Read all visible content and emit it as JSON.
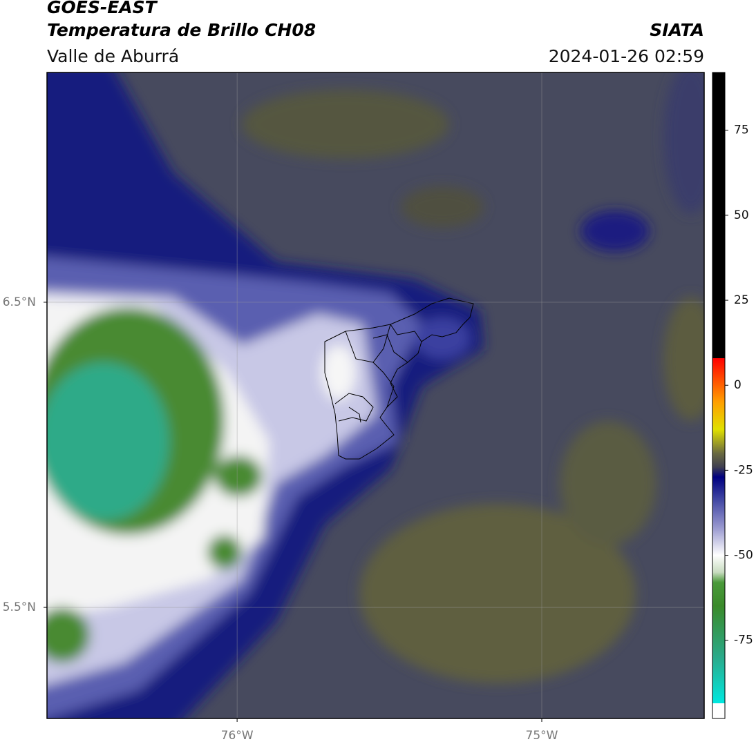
{
  "chart_data": {
    "type": "map",
    "title": "GOES-EAST",
    "subtitle": "Temperatura de Brillo CH08",
    "region": "Valle de Aburrá",
    "source": "SIATA",
    "timestamp": "2024-01-26 02:59",
    "xlim": [
      -76.624,
      -74.467
    ],
    "ylim": [
      5.136,
      7.253
    ],
    "xticks": [
      {
        "value": -76,
        "label": "76°W"
      },
      {
        "value": -75,
        "label": "75°W"
      }
    ],
    "yticks": [
      {
        "value": 6.5,
        "label": "6.5°N"
      },
      {
        "value": 5.5,
        "label": "5.5°N"
      }
    ],
    "grid": true,
    "colorbar": {
      "clim": [
        -98,
        92
      ],
      "ticks": [
        75,
        50,
        25,
        0,
        -25,
        -50,
        -75
      ],
      "stops": [
        {
          "value": -98,
          "color": "#ffffff"
        },
        {
          "value": -93.5,
          "color": "#ffffff"
        },
        {
          "value": -93.5,
          "color": "#00e8e0"
        },
        {
          "value": -80,
          "color": "#2aaa8a"
        },
        {
          "value": -65,
          "color": "#3a8a2a"
        },
        {
          "value": -58,
          "color": "#4a9a3a"
        },
        {
          "value": -55,
          "color": "#c8dcc0"
        },
        {
          "value": -50,
          "color": "#ffffff"
        },
        {
          "value": -42,
          "color": "#9a9ad0"
        },
        {
          "value": -33,
          "color": "#3a40a0"
        },
        {
          "value": -27,
          "color": "#000080"
        },
        {
          "value": -24,
          "color": "#404050"
        },
        {
          "value": -20,
          "color": "#6a6a40"
        },
        {
          "value": -13,
          "color": "#e0e000"
        },
        {
          "value": -5,
          "color": "#ffa000"
        },
        {
          "value": 8,
          "color": "#ff0000"
        },
        {
          "value": 8,
          "color": "#000000"
        },
        {
          "value": 92,
          "color": "#000000"
        }
      ]
    }
  }
}
